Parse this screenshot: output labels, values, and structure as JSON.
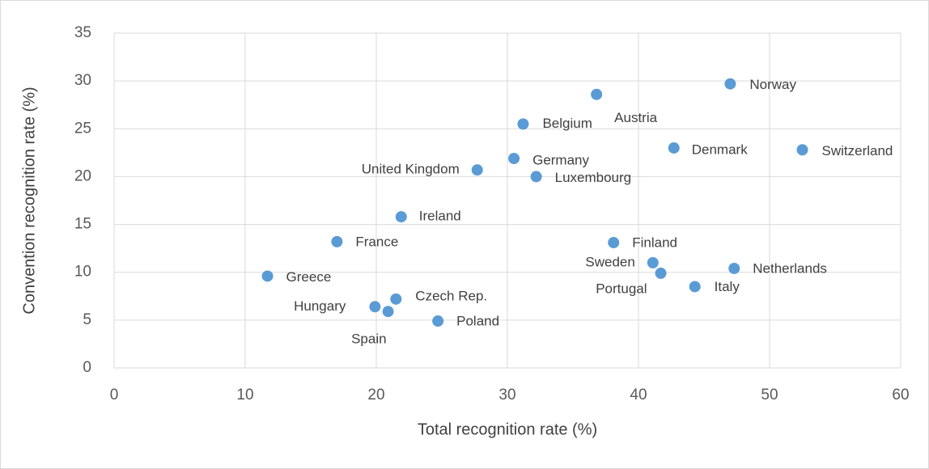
{
  "chart_data": {
    "type": "scatter",
    "xlabel": "Total recognition rate (%)",
    "ylabel": "Convention recognition rate (%)",
    "point_labels": [
      "Norway",
      "Austria",
      "Belgium",
      "Denmark",
      "Switzerland",
      "Germany",
      "United Kingdom",
      "Luxembourg",
      "Ireland",
      "France",
      "Finland",
      "Sweden",
      "Portugal",
      "Netherlands",
      "Italy",
      "Greece",
      "Czech Rep.",
      "Hungary",
      "Spain",
      "Poland"
    ],
    "x": [
      47.0,
      36.8,
      31.2,
      42.7,
      52.5,
      30.5,
      27.7,
      32.2,
      21.9,
      17.0,
      38.1,
      41.1,
      41.7,
      47.3,
      44.3,
      11.7,
      21.5,
      19.9,
      20.9,
      24.7
    ],
    "values": [
      29.7,
      28.6,
      25.5,
      23.0,
      22.8,
      21.9,
      20.7,
      20.0,
      15.8,
      13.2,
      13.1,
      11.0,
      9.9,
      10.4,
      8.5,
      9.6,
      7.2,
      6.4,
      5.9,
      4.9
    ],
    "color": "#5b9bd5",
    "xlim": [
      0,
      60
    ],
    "xticks": [
      0,
      10,
      20,
      30,
      40,
      50,
      60
    ],
    "ylim": [
      0,
      35
    ],
    "yticks": [
      0,
      5,
      10,
      15,
      20,
      25,
      30,
      35
    ],
    "grid": true
  }
}
